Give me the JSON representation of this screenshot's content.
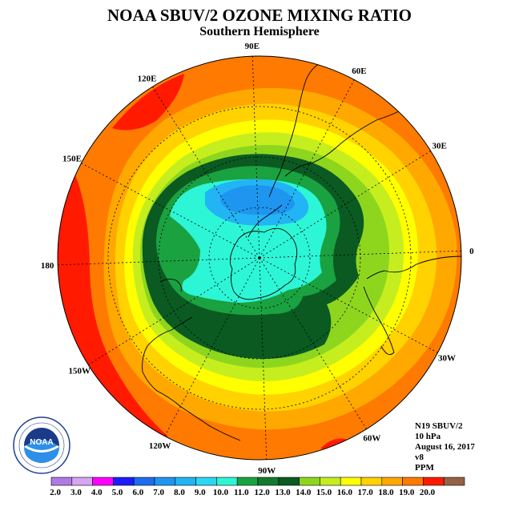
{
  "title": "NOAA SBUV/2 OZONE MIXING RATIO",
  "subtitle": "Southern Hemisphere",
  "longitude_labels": [
    {
      "text": "90W",
      "lon_deg": -90
    },
    {
      "text": "60W",
      "lon_deg": -60
    },
    {
      "text": "30W",
      "lon_deg": -30
    },
    {
      "text": "0",
      "lon_deg": 0
    },
    {
      "text": "30E",
      "lon_deg": 30
    },
    {
      "text": "60E",
      "lon_deg": 60
    },
    {
      "text": "90E",
      "lon_deg": 90
    },
    {
      "text": "120E",
      "lon_deg": 120
    },
    {
      "text": "150E",
      "lon_deg": 150
    },
    {
      "text": "180",
      "lon_deg": 180
    },
    {
      "text": "150W",
      "lon_deg": -150
    },
    {
      "text": "120W",
      "lon_deg": -120
    }
  ],
  "info": {
    "satellite": "N19 SBUV/2",
    "level": "10 hPa",
    "date": "August 16, 2017",
    "version": "v8",
    "units": "PPM"
  },
  "colorbar": {
    "colors": [
      "#b07ae6",
      "#d6a6f0",
      "#ff00ff",
      "#1c1cff",
      "#1e6cf0",
      "#1e96f0",
      "#22b4f4",
      "#2ad8f2",
      "#2cf6d6",
      "#1aa240",
      "#127a2e",
      "#0a5a22",
      "#8ed61e",
      "#c6ee1e",
      "#ffff00",
      "#ffd200",
      "#ffa800",
      "#ff7a00",
      "#ff1a00",
      "#946244"
    ],
    "labels": [
      "2.0",
      "3.0",
      "4.0",
      "5.0",
      "6.0",
      "7.0",
      "8.0",
      "9.0",
      "10.0",
      "11.0",
      "12.0",
      "13.0",
      "14.0",
      "15.0",
      "16.0",
      "17.0",
      "18.0",
      "19.0",
      "20.0"
    ]
  }
}
